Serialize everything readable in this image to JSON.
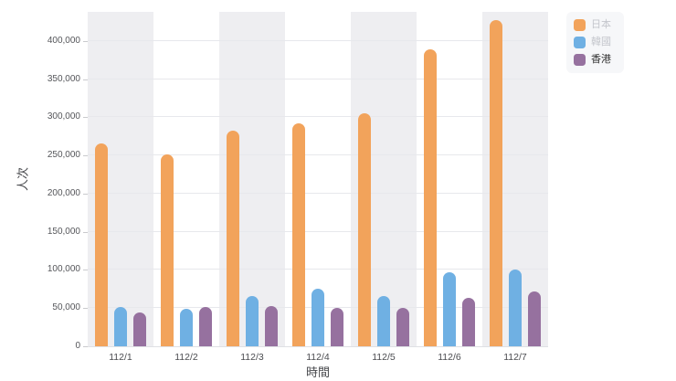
{
  "colors": {
    "japan": "#F2A35B",
    "korea": "#6FB0E3",
    "hongkong": "#96719F",
    "band": "#eeeef1",
    "grid_line": "#e7e8ec",
    "legend_bg": "#f6f7f9",
    "legend_dimmed_text": "#c4c6cc",
    "legend_active_text": "#333333",
    "axis_text": "#55565a"
  },
  "chart_data": {
    "type": "bar",
    "title": "",
    "xlabel": "時間",
    "ylabel": "人次",
    "categories": [
      "112/1",
      "112/2",
      "112/3",
      "112/4",
      "112/5",
      "112/6",
      "112/7"
    ],
    "series": [
      {
        "name": "日本",
        "color": "#F2A35B",
        "values": [
          266000,
          251000,
          282000,
          292000,
          305000,
          389000,
          427000
        ]
      },
      {
        "name": "韓國",
        "color": "#6FB0E3",
        "values": [
          52000,
          49000,
          66000,
          75000,
          66000,
          97000,
          100000
        ]
      },
      {
        "name": "香港",
        "color": "#96719F",
        "values": [
          44000,
          52000,
          53000,
          50000,
          50000,
          63000,
          72000
        ]
      }
    ],
    "ylim": [
      0,
      438000
    ],
    "ytick_values": [
      0,
      50000,
      100000,
      150000,
      200000,
      250000,
      300000,
      350000,
      400000
    ],
    "ytick_labels": [
      "0",
      "50,000",
      "100,000",
      "150,000",
      "200,000",
      "250,000",
      "300,000",
      "350,000",
      "400,000"
    ],
    "grid": true,
    "split_area": "alternating-gray-on-odd-categories",
    "legend_position": "top-right",
    "legend": {
      "items": [
        {
          "label": "日本",
          "color": "#F2A35B",
          "dimmed": true
        },
        {
          "label": "韓國",
          "color": "#6FB0E3",
          "dimmed": true
        },
        {
          "label": "香港",
          "color": "#96719F",
          "dimmed": false
        }
      ]
    }
  }
}
